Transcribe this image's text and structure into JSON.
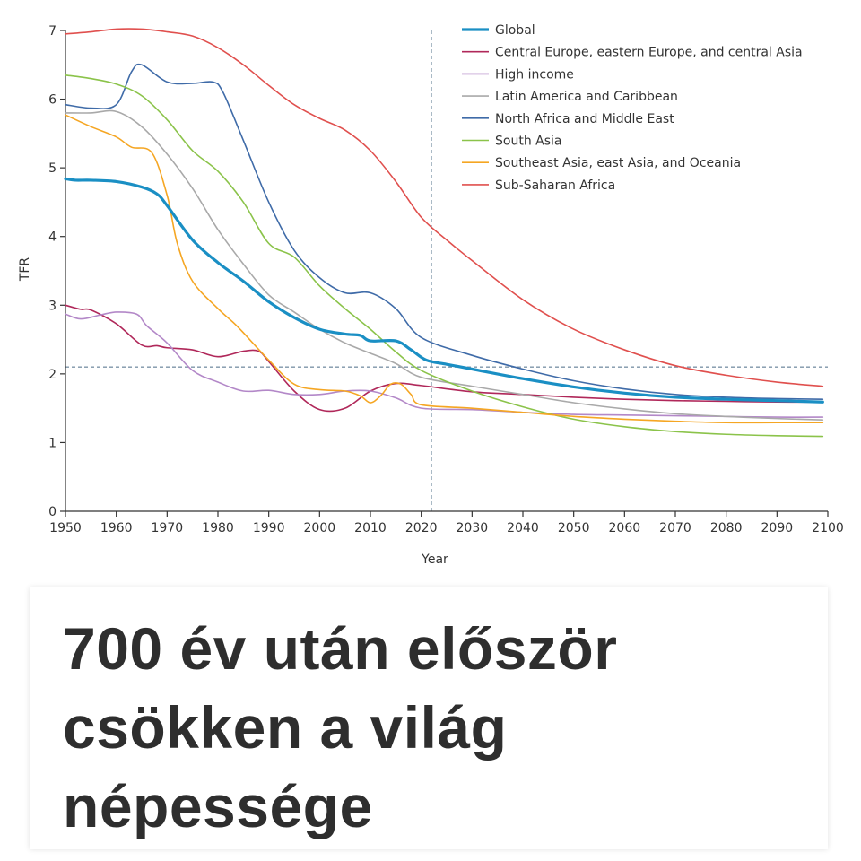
{
  "chart_data": {
    "type": "line",
    "xlabel": "Year",
    "ylabel": "TFR",
    "xlim": [
      1950,
      2100
    ],
    "ylim": [
      0,
      7
    ],
    "x_ticks": [
      1950,
      1960,
      1970,
      1980,
      1990,
      2000,
      2010,
      2020,
      2030,
      2040,
      2050,
      2060,
      2070,
      2080,
      2090,
      2100
    ],
    "y_ticks": [
      0,
      1,
      2,
      3,
      4,
      5,
      6,
      7
    ],
    "reference_lines": {
      "vertical_x": 2022,
      "horizontal_y": 2.1
    },
    "legend_position": "top-right",
    "grid": false,
    "series": [
      {
        "name": "Global",
        "color": "#1a8fc4",
        "bold": true,
        "points": [
          [
            1950,
            4.84
          ],
          [
            1952,
            4.82
          ],
          [
            1955,
            4.82
          ],
          [
            1960,
            4.8
          ],
          [
            1965,
            4.72
          ],
          [
            1968,
            4.62
          ],
          [
            1970,
            4.45
          ],
          [
            1975,
            3.95
          ],
          [
            1980,
            3.62
          ],
          [
            1985,
            3.35
          ],
          [
            1990,
            3.05
          ],
          [
            1995,
            2.82
          ],
          [
            2000,
            2.65
          ],
          [
            2005,
            2.58
          ],
          [
            2008,
            2.56
          ],
          [
            2010,
            2.48
          ],
          [
            2015,
            2.48
          ],
          [
            2018,
            2.35
          ],
          [
            2021,
            2.2
          ],
          [
            2025,
            2.14
          ],
          [
            2030,
            2.07
          ],
          [
            2040,
            1.93
          ],
          [
            2050,
            1.81
          ],
          [
            2060,
            1.72
          ],
          [
            2070,
            1.66
          ],
          [
            2080,
            1.63
          ],
          [
            2090,
            1.61
          ],
          [
            2099,
            1.59
          ]
        ]
      },
      {
        "name": "Central Europe, eastern Europe, and central Asia",
        "color": "#b0285a",
        "points": [
          [
            1950,
            3.0
          ],
          [
            1953,
            2.94
          ],
          [
            1955,
            2.93
          ],
          [
            1960,
            2.73
          ],
          [
            1965,
            2.42
          ],
          [
            1968,
            2.41
          ],
          [
            1970,
            2.38
          ],
          [
            1975,
            2.35
          ],
          [
            1980,
            2.25
          ],
          [
            1985,
            2.33
          ],
          [
            1988,
            2.33
          ],
          [
            1990,
            2.18
          ],
          [
            1995,
            1.75
          ],
          [
            2000,
            1.48
          ],
          [
            2005,
            1.5
          ],
          [
            2010,
            1.75
          ],
          [
            2015,
            1.86
          ],
          [
            2020,
            1.83
          ],
          [
            2030,
            1.74
          ],
          [
            2040,
            1.7
          ],
          [
            2050,
            1.66
          ],
          [
            2060,
            1.63
          ],
          [
            2070,
            1.61
          ],
          [
            2080,
            1.6
          ],
          [
            2090,
            1.59
          ],
          [
            2099,
            1.59
          ]
        ]
      },
      {
        "name": "High income",
        "color": "#b388c8",
        "points": [
          [
            1950,
            2.87
          ],
          [
            1953,
            2.8
          ],
          [
            1957,
            2.86
          ],
          [
            1960,
            2.9
          ],
          [
            1964,
            2.87
          ],
          [
            1966,
            2.7
          ],
          [
            1970,
            2.45
          ],
          [
            1975,
            2.05
          ],
          [
            1980,
            1.88
          ],
          [
            1985,
            1.75
          ],
          [
            1990,
            1.76
          ],
          [
            1995,
            1.7
          ],
          [
            2000,
            1.7
          ],
          [
            2005,
            1.75
          ],
          [
            2010,
            1.75
          ],
          [
            2015,
            1.65
          ],
          [
            2020,
            1.5
          ],
          [
            2030,
            1.48
          ],
          [
            2040,
            1.44
          ],
          [
            2050,
            1.41
          ],
          [
            2060,
            1.4
          ],
          [
            2070,
            1.39
          ],
          [
            2080,
            1.38
          ],
          [
            2090,
            1.37
          ],
          [
            2099,
            1.37
          ]
        ]
      },
      {
        "name": "Latin America and Caribbean",
        "color": "#a9a9a9",
        "points": [
          [
            1950,
            5.8
          ],
          [
            1955,
            5.8
          ],
          [
            1960,
            5.82
          ],
          [
            1965,
            5.6
          ],
          [
            1970,
            5.2
          ],
          [
            1975,
            4.7
          ],
          [
            1980,
            4.1
          ],
          [
            1985,
            3.6
          ],
          [
            1990,
            3.15
          ],
          [
            1995,
            2.9
          ],
          [
            2000,
            2.65
          ],
          [
            2005,
            2.45
          ],
          [
            2010,
            2.3
          ],
          [
            2015,
            2.15
          ],
          [
            2020,
            1.95
          ],
          [
            2030,
            1.82
          ],
          [
            2040,
            1.7
          ],
          [
            2050,
            1.58
          ],
          [
            2060,
            1.49
          ],
          [
            2070,
            1.42
          ],
          [
            2080,
            1.38
          ],
          [
            2090,
            1.35
          ],
          [
            2099,
            1.33
          ]
        ]
      },
      {
        "name": "North Africa and Middle East",
        "color": "#3f6ba8",
        "points": [
          [
            1950,
            5.92
          ],
          [
            1955,
            5.87
          ],
          [
            1960,
            5.92
          ],
          [
            1963,
            6.4
          ],
          [
            1965,
            6.5
          ],
          [
            1970,
            6.25
          ],
          [
            1975,
            6.23
          ],
          [
            1979,
            6.25
          ],
          [
            1981,
            6.1
          ],
          [
            1985,
            5.4
          ],
          [
            1990,
            4.5
          ],
          [
            1995,
            3.8
          ],
          [
            2000,
            3.4
          ],
          [
            2005,
            3.18
          ],
          [
            2010,
            3.18
          ],
          [
            2015,
            2.95
          ],
          [
            2020,
            2.53
          ],
          [
            2030,
            2.27
          ],
          [
            2040,
            2.07
          ],
          [
            2050,
            1.9
          ],
          [
            2060,
            1.78
          ],
          [
            2070,
            1.7
          ],
          [
            2080,
            1.66
          ],
          [
            2090,
            1.64
          ],
          [
            2099,
            1.63
          ]
        ]
      },
      {
        "name": "South Asia",
        "color": "#8bc34a",
        "points": [
          [
            1950,
            6.35
          ],
          [
            1955,
            6.3
          ],
          [
            1960,
            6.22
          ],
          [
            1965,
            6.05
          ],
          [
            1970,
            5.7
          ],
          [
            1975,
            5.25
          ],
          [
            1980,
            4.95
          ],
          [
            1985,
            4.5
          ],
          [
            1990,
            3.9
          ],
          [
            1995,
            3.7
          ],
          [
            2000,
            3.28
          ],
          [
            2005,
            2.95
          ],
          [
            2010,
            2.65
          ],
          [
            2015,
            2.32
          ],
          [
            2020,
            2.05
          ],
          [
            2030,
            1.75
          ],
          [
            2040,
            1.52
          ],
          [
            2050,
            1.34
          ],
          [
            2060,
            1.23
          ],
          [
            2070,
            1.16
          ],
          [
            2080,
            1.12
          ],
          [
            2090,
            1.1
          ],
          [
            2099,
            1.09
          ]
        ]
      },
      {
        "name": "Southeast Asia, east Asia, and Oceania",
        "color": "#f5a623",
        "points": [
          [
            1950,
            5.77
          ],
          [
            1955,
            5.6
          ],
          [
            1960,
            5.45
          ],
          [
            1963,
            5.3
          ],
          [
            1967,
            5.22
          ],
          [
            1970,
            4.6
          ],
          [
            1972,
            3.9
          ],
          [
            1975,
            3.35
          ],
          [
            1980,
            2.95
          ],
          [
            1983,
            2.75
          ],
          [
            1985,
            2.6
          ],
          [
            1990,
            2.2
          ],
          [
            1995,
            1.85
          ],
          [
            2000,
            1.77
          ],
          [
            2005,
            1.75
          ],
          [
            2008,
            1.68
          ],
          [
            2010,
            1.58
          ],
          [
            2012,
            1.68
          ],
          [
            2014,
            1.85
          ],
          [
            2016,
            1.85
          ],
          [
            2018,
            1.7
          ],
          [
            2020,
            1.55
          ],
          [
            2030,
            1.5
          ],
          [
            2040,
            1.44
          ],
          [
            2050,
            1.38
          ],
          [
            2060,
            1.34
          ],
          [
            2070,
            1.31
          ],
          [
            2080,
            1.29
          ],
          [
            2090,
            1.29
          ],
          [
            2099,
            1.29
          ]
        ]
      },
      {
        "name": "Sub-Saharan Africa",
        "color": "#e0504e",
        "points": [
          [
            1950,
            6.95
          ],
          [
            1955,
            6.98
          ],
          [
            1960,
            7.02
          ],
          [
            1965,
            7.02
          ],
          [
            1970,
            6.98
          ],
          [
            1975,
            6.92
          ],
          [
            1980,
            6.75
          ],
          [
            1985,
            6.5
          ],
          [
            1990,
            6.2
          ],
          [
            1995,
            5.92
          ],
          [
            2000,
            5.72
          ],
          [
            2005,
            5.55
          ],
          [
            2010,
            5.25
          ],
          [
            2015,
            4.8
          ],
          [
            2020,
            4.28
          ],
          [
            2025,
            3.95
          ],
          [
            2030,
            3.65
          ],
          [
            2040,
            3.08
          ],
          [
            2050,
            2.65
          ],
          [
            2060,
            2.35
          ],
          [
            2070,
            2.12
          ],
          [
            2080,
            1.98
          ],
          [
            2090,
            1.88
          ],
          [
            2099,
            1.82
          ]
        ]
      }
    ]
  },
  "headline": {
    "line1": "700 év után először",
    "line2": "csökken a világ",
    "line3": "népessége"
  }
}
